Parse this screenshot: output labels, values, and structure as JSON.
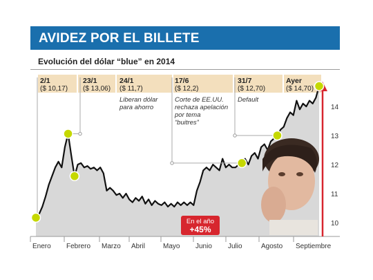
{
  "header": {
    "title": "AVIDEZ POR EL BILLETE",
    "subtitle": "Evolución del dólar “blue” en 2014"
  },
  "colors": {
    "banner": "#1a6fad",
    "area_fill": "#d8d8d8",
    "line": "#111111",
    "marker": "#c5d800",
    "callout_bg": "#f3dfbd",
    "badge": "#d7262e",
    "arrow": "#d7262e"
  },
  "badge": {
    "line1": "En el año",
    "line2": "+45%"
  },
  "chart_data": {
    "type": "area",
    "title": "Evolución del dólar “blue” en 2014",
    "xlabel": "",
    "ylabel": "",
    "ylim": [
      10,
      14.6
    ],
    "yticks": [
      "10",
      "11",
      "12",
      "13",
      "14"
    ],
    "months": [
      "Enero",
      "Febrero",
      "Marzo",
      "Abril",
      "Mayo",
      "Junio",
      "Julio",
      "Agosto",
      "Septiembre"
    ],
    "series": [
      {
        "values": [
          10.17,
          10.3,
          10.55,
          10.9,
          11.3,
          11.6,
          11.9,
          12.1,
          11.9,
          12.6,
          13.06,
          12.3,
          11.6,
          12.0,
          12.05,
          11.9,
          11.95,
          11.85,
          11.9,
          11.8,
          11.9,
          11.7,
          11.1,
          11.2,
          11.1,
          10.95,
          11.0,
          10.85,
          11.0,
          10.8,
          10.7,
          10.85,
          10.75,
          10.9,
          10.65,
          10.8,
          10.6,
          10.75,
          10.65,
          10.6,
          10.7,
          10.55,
          10.65,
          10.55,
          10.7,
          10.6,
          10.7,
          10.6,
          10.7,
          10.6,
          11.1,
          11.4,
          11.8,
          11.9,
          11.8,
          12.0,
          11.9,
          11.8,
          12.2,
          11.9,
          12.0,
          11.9,
          11.9,
          12.0,
          12.05,
          12.2,
          12.0,
          12.3,
          12.4,
          12.2,
          12.6,
          12.7,
          12.5,
          12.8,
          12.9,
          13.0,
          13.2,
          13.3,
          13.6,
          13.8,
          13.7,
          14.2,
          13.9,
          14.1,
          14.0,
          14.2,
          14.1,
          14.3,
          14.7
        ]
      }
    ],
    "annotations": [
      {
        "date": "2/1",
        "value": "($ 10,17)",
        "note": ""
      },
      {
        "date": "23/1",
        "value": "($ 13,06)",
        "note": ""
      },
      {
        "date": "24/1",
        "value": "($ 11,7)",
        "note": "Liberan dólar para ahorro"
      },
      {
        "date": "17/6",
        "value": "($ 12,2)",
        "note": "Corte de EE.UU. rechaza apelación por tema “buitres”"
      },
      {
        "date": "31/7",
        "value": "($ 12,70)",
        "note": "Default"
      },
      {
        "date": "Ayer",
        "value": "($ 14,70)",
        "note": ""
      }
    ]
  }
}
